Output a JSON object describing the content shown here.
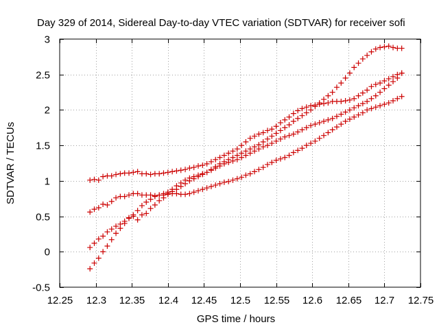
{
  "chart_data": {
    "type": "scatter",
    "title": "Day 329 of 2014, Sidereal Day-to-day VTEC variation (SDTVAR) for receiver sofi",
    "xlabel": "GPS time / hours",
    "ylabel": "SDTVAR / TECUs",
    "xlim": [
      12.25,
      12.75
    ],
    "ylim": [
      -0.5,
      3
    ],
    "xticks": [
      12.25,
      12.3,
      12.35,
      12.4,
      12.45,
      12.5,
      12.55,
      12.6,
      12.65,
      12.7,
      12.75
    ],
    "xtick_labels": [
      "12.25",
      "12.3",
      "12.35",
      "12.4",
      "12.45",
      "12.5",
      "12.55",
      "12.6",
      "12.65",
      "12.7",
      "12.75"
    ],
    "yticks": [
      -0.5,
      0,
      0.5,
      1,
      1.5,
      2,
      2.5,
      3
    ],
    "ytick_labels": [
      "-0.5",
      "0",
      "0.5",
      "1",
      "1.5",
      "2",
      "2.5",
      "3"
    ],
    "grid": true,
    "marker": "+",
    "color": "#cc0000",
    "series": [
      {
        "name": "series-1",
        "x": [
          12.292,
          12.298,
          12.304,
          12.31,
          12.316,
          12.322,
          12.328,
          12.334,
          12.34,
          12.346,
          12.352,
          12.358,
          12.364,
          12.37,
          12.376,
          12.382,
          12.388,
          12.394,
          12.4,
          12.406,
          12.412,
          12.418,
          12.424,
          12.43,
          12.436,
          12.442,
          12.448,
          12.454,
          12.46,
          12.466,
          12.472,
          12.478,
          12.484,
          12.49,
          12.496,
          12.502,
          12.508,
          12.514,
          12.52,
          12.526,
          12.532,
          12.538,
          12.544,
          12.55,
          12.556,
          12.562,
          12.568,
          12.574,
          12.58,
          12.586,
          12.592,
          12.598,
          12.604,
          12.61,
          12.616,
          12.622,
          12.628,
          12.634,
          12.64,
          12.646,
          12.652,
          12.658,
          12.664,
          12.67,
          12.676,
          12.682,
          12.688,
          12.694,
          12.7,
          12.706,
          12.712,
          12.718,
          12.724
        ],
        "y": [
          1.01,
          1.02,
          1.01,
          1.06,
          1.07,
          1.07,
          1.09,
          1.1,
          1.11,
          1.11,
          1.12,
          1.13,
          1.1,
          1.1,
          1.09,
          1.1,
          1.1,
          1.11,
          1.12,
          1.13,
          1.14,
          1.15,
          1.16,
          1.18,
          1.19,
          1.21,
          1.22,
          1.24,
          1.27,
          1.3,
          1.33,
          1.36,
          1.39,
          1.42,
          1.45,
          1.5,
          1.55,
          1.6,
          1.63,
          1.66,
          1.68,
          1.71,
          1.73,
          1.77,
          1.82,
          1.86,
          1.9,
          1.95,
          1.99,
          2.02,
          2.04,
          2.06,
          2.07,
          2.08,
          2.09,
          2.1,
          2.12,
          2.12,
          2.12,
          2.13,
          2.14,
          2.16,
          2.2,
          2.24,
          2.28,
          2.33,
          2.36,
          2.38,
          2.41,
          2.44,
          2.47,
          2.5,
          2.52
        ]
      },
      {
        "name": "series-2",
        "x": [
          12.292,
          12.298,
          12.304,
          12.31,
          12.316,
          12.322,
          12.328,
          12.334,
          12.34,
          12.346,
          12.352,
          12.358,
          12.364,
          12.37,
          12.376,
          12.382,
          12.388,
          12.394,
          12.4,
          12.406,
          12.412,
          12.418,
          12.424,
          12.43,
          12.436,
          12.442,
          12.448,
          12.454,
          12.46,
          12.466,
          12.472,
          12.478,
          12.484,
          12.49,
          12.496,
          12.502,
          12.508,
          12.514,
          12.52,
          12.526,
          12.532,
          12.538,
          12.544,
          12.55,
          12.556,
          12.562,
          12.568,
          12.574,
          12.58,
          12.586,
          12.592,
          12.598,
          12.604,
          12.61,
          12.616,
          12.622,
          12.628,
          12.634,
          12.64,
          12.646,
          12.652,
          12.658,
          12.664,
          12.67,
          12.676,
          12.682,
          12.688,
          12.694,
          12.7,
          12.706,
          12.712,
          12.718,
          12.724
        ],
        "y": [
          0.56,
          0.6,
          0.62,
          0.67,
          0.66,
          0.71,
          0.76,
          0.78,
          0.78,
          0.8,
          0.82,
          0.82,
          0.8,
          0.8,
          0.8,
          0.79,
          0.8,
          0.8,
          0.81,
          0.82,
          0.82,
          0.81,
          0.81,
          0.82,
          0.84,
          0.86,
          0.88,
          0.9,
          0.92,
          0.94,
          0.96,
          0.98,
          0.99,
          1.01,
          1.03,
          1.05,
          1.08,
          1.1,
          1.13,
          1.16,
          1.19,
          1.23,
          1.26,
          1.29,
          1.31,
          1.33,
          1.36,
          1.4,
          1.43,
          1.46,
          1.5,
          1.53,
          1.56,
          1.6,
          1.64,
          1.68,
          1.72,
          1.76,
          1.8,
          1.84,
          1.87,
          1.9,
          1.93,
          1.96,
          2.0,
          2.02,
          2.04,
          2.06,
          2.08,
          2.1,
          2.13,
          2.16,
          2.19
        ]
      },
      {
        "name": "series-3",
        "x": [
          12.292,
          12.298,
          12.304,
          12.31,
          12.316,
          12.322,
          12.328,
          12.334,
          12.34,
          12.346,
          12.352,
          12.358,
          12.364,
          12.37,
          12.376,
          12.382,
          12.388,
          12.394,
          12.4,
          12.406,
          12.412,
          12.418,
          12.424,
          12.43,
          12.436,
          12.442,
          12.448,
          12.454,
          12.46,
          12.466,
          12.472,
          12.478,
          12.484,
          12.49,
          12.496,
          12.502,
          12.508,
          12.514,
          12.52,
          12.526,
          12.532,
          12.538,
          12.544,
          12.55,
          12.556,
          12.562,
          12.568,
          12.574,
          12.58,
          12.586,
          12.592,
          12.598,
          12.604,
          12.61,
          12.616,
          12.622,
          12.628,
          12.634,
          12.64,
          12.646,
          12.652,
          12.658,
          12.664,
          12.67,
          12.676,
          12.682,
          12.688,
          12.694,
          12.7,
          12.706,
          12.712,
          12.718,
          12.724
        ],
        "y": [
          0.06,
          0.12,
          0.18,
          0.22,
          0.28,
          0.32,
          0.36,
          0.39,
          0.43,
          0.48,
          0.52,
          0.45,
          0.52,
          0.54,
          0.61,
          0.66,
          0.72,
          0.76,
          0.82,
          0.85,
          0.88,
          0.92,
          0.96,
          1.0,
          1.03,
          1.06,
          1.09,
          1.12,
          1.16,
          1.2,
          1.24,
          1.27,
          1.3,
          1.33,
          1.36,
          1.39,
          1.42,
          1.45,
          1.48,
          1.51,
          1.55,
          1.59,
          1.63,
          1.67,
          1.71,
          1.75,
          1.79,
          1.84,
          1.88,
          1.92,
          1.96,
          2.0,
          2.05,
          2.1,
          2.15,
          2.2,
          2.25,
          2.32,
          2.38,
          2.45,
          2.52,
          2.6,
          2.66,
          2.72,
          2.77,
          2.82,
          2.86,
          2.88,
          2.89,
          2.9,
          2.88,
          2.87,
          2.87
        ]
      },
      {
        "name": "series-4",
        "x": [
          12.292,
          12.298,
          12.304,
          12.31,
          12.316,
          12.322,
          12.328,
          12.334,
          12.34,
          12.346,
          12.352,
          12.358,
          12.364,
          12.37,
          12.376,
          12.382,
          12.388,
          12.394,
          12.4,
          12.406,
          12.412,
          12.418,
          12.424,
          12.43,
          12.436,
          12.442,
          12.448,
          12.454,
          12.46,
          12.466,
          12.472,
          12.478,
          12.484,
          12.49,
          12.496,
          12.502,
          12.508,
          12.514,
          12.52,
          12.526,
          12.532,
          12.538,
          12.544,
          12.55,
          12.556,
          12.562,
          12.568,
          12.574,
          12.58,
          12.586,
          12.592,
          12.598,
          12.604,
          12.61,
          12.616,
          12.622,
          12.628,
          12.634,
          12.64,
          12.646,
          12.652,
          12.658,
          12.664,
          12.67,
          12.676,
          12.682,
          12.688,
          12.694,
          12.7,
          12.706,
          12.712,
          12.718,
          12.724
        ],
        "y": [
          -0.24,
          -0.16,
          -0.09,
          0.0,
          0.08,
          0.17,
          0.26,
          0.33,
          0.4,
          0.47,
          0.5,
          0.58,
          0.65,
          0.7,
          0.74,
          0.78,
          0.8,
          0.82,
          0.84,
          0.88,
          0.93,
          0.97,
          1.01,
          1.04,
          1.06,
          1.08,
          1.1,
          1.12,
          1.15,
          1.18,
          1.21,
          1.24,
          1.26,
          1.28,
          1.3,
          1.33,
          1.36,
          1.39,
          1.42,
          1.45,
          1.48,
          1.5,
          1.53,
          1.56,
          1.59,
          1.62,
          1.64,
          1.66,
          1.69,
          1.72,
          1.75,
          1.78,
          1.8,
          1.82,
          1.84,
          1.86,
          1.88,
          1.91,
          1.94,
          1.97,
          2.0,
          2.03,
          2.06,
          2.09,
          2.12,
          2.16,
          2.2,
          2.25,
          2.3,
          2.35,
          2.4,
          2.45,
          2.52
        ]
      }
    ]
  }
}
